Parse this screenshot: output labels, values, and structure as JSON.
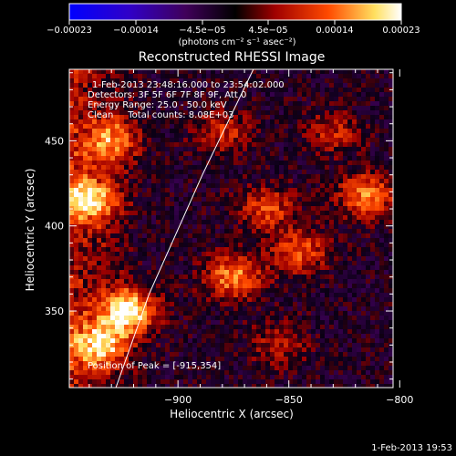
{
  "chart_data": {
    "type": "heatmap",
    "title": "Reconstructed RHESSI Image",
    "xlabel": "Heliocentric X (arcsec)",
    "ylabel": "Heliocentric Y (arcsec)",
    "xlim": [
      -949,
      -803
    ],
    "ylim": [
      305,
      492
    ],
    "xticks": [
      -900,
      -850,
      -800
    ],
    "yticks": [
      350,
      400,
      450
    ],
    "xtick_labels": [
      "−900",
      "−850",
      "−800"
    ],
    "ytick_labels": [
      "350",
      "400",
      "450"
    ],
    "colorbar": {
      "range": [
        -0.00023,
        0.00023
      ],
      "tick_labels": [
        "−0.00023",
        "−0.00014",
        "−4.5e−05",
        "4.5e−05",
        "0.00014",
        "0.00023"
      ],
      "unit_label": "(photons cm⁻² s⁻¹ asec⁻²)",
      "colors": [
        "#0000ff",
        "#4a00a0",
        "#000000",
        "#a00000",
        "#ff5000",
        "#ffff90",
        "#ffffff"
      ]
    },
    "info_lines": [
      "1-Feb-2013 23:48:16.000 to 23:54:02.000",
      "Detectors: 3F 5F 6F 7F 8F 9F, Att 0",
      "Energy Range: 25.0 - 50.0 keV",
      "Clean     Total counts: 8.08E+03"
    ],
    "peak_label": "Position of Peak = [-915,354]",
    "peak": [
      -915,
      354
    ],
    "limb": [
      [
        -928,
        305
      ],
      [
        -913,
        360
      ],
      [
        -889,
        430
      ],
      [
        -866,
        492
      ]
    ],
    "hot_spots": [
      {
        "x": -940,
        "y": 415,
        "value": 0.00018
      },
      {
        "x": -922,
        "y": 350,
        "value": 0.00023
      },
      {
        "x": -935,
        "y": 330,
        "value": 0.00019
      },
      {
        "x": -930,
        "y": 450,
        "value": 0.00015
      },
      {
        "x": -875,
        "y": 370,
        "value": 0.00017
      },
      {
        "x": -860,
        "y": 410,
        "value": 0.00012
      },
      {
        "x": -845,
        "y": 385,
        "value": 0.00013
      },
      {
        "x": -815,
        "y": 418,
        "value": 0.00016
      },
      {
        "x": -880,
        "y": 455,
        "value": 0.0001
      },
      {
        "x": -830,
        "y": 455,
        "value": 9e-05
      },
      {
        "x": -855,
        "y": 330,
        "value": 8e-05
      }
    ]
  },
  "timestamp": "1-Feb-2013 19:53"
}
